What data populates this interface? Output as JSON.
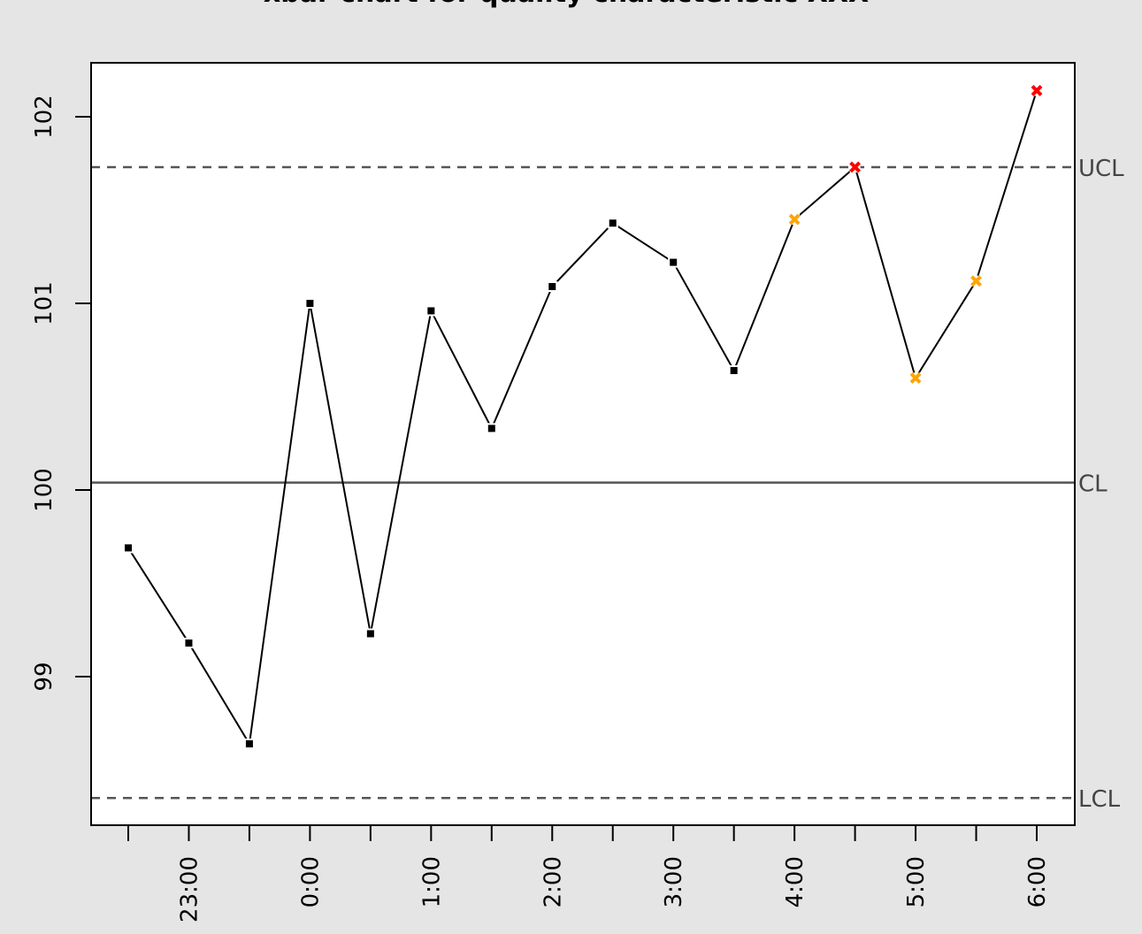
{
  "chart_data": {
    "type": "line",
    "title": "xbar chart for quality characteristic XXX",
    "categories": [
      null,
      "23:00",
      null,
      "0:00",
      null,
      "1:00",
      null,
      "2:00",
      null,
      "3:00",
      null,
      "4:00",
      null,
      "5:00",
      null,
      "6:00"
    ],
    "values": [
      99.69,
      99.18,
      98.64,
      101.0,
      99.23,
      100.96,
      100.33,
      101.09,
      101.43,
      101.22,
      100.64,
      101.45,
      101.73,
      100.6,
      101.12,
      102.14
    ],
    "color": "#000000",
    "point_colors": [
      "#000000",
      "#000000",
      "#000000",
      "#000000",
      "#000000",
      "#000000",
      "#000000",
      "#000000",
      "#000000",
      "#000000",
      "#000000",
      "#ffa500",
      "#ff0000",
      "#ffa500",
      "#ffa500",
      "#ff0000"
    ],
    "control_lines": [
      {
        "label": "UCL",
        "value": 101.73,
        "style": "dashed"
      },
      {
        "label": "CL",
        "value": 100.04,
        "style": "solid"
      },
      {
        "label": "LCL",
        "value": 98.35,
        "style": "dashed"
      }
    ],
    "ylim": [
      98.204,
      102.289
    ],
    "yticks": [
      99,
      100,
      101,
      102
    ]
  }
}
